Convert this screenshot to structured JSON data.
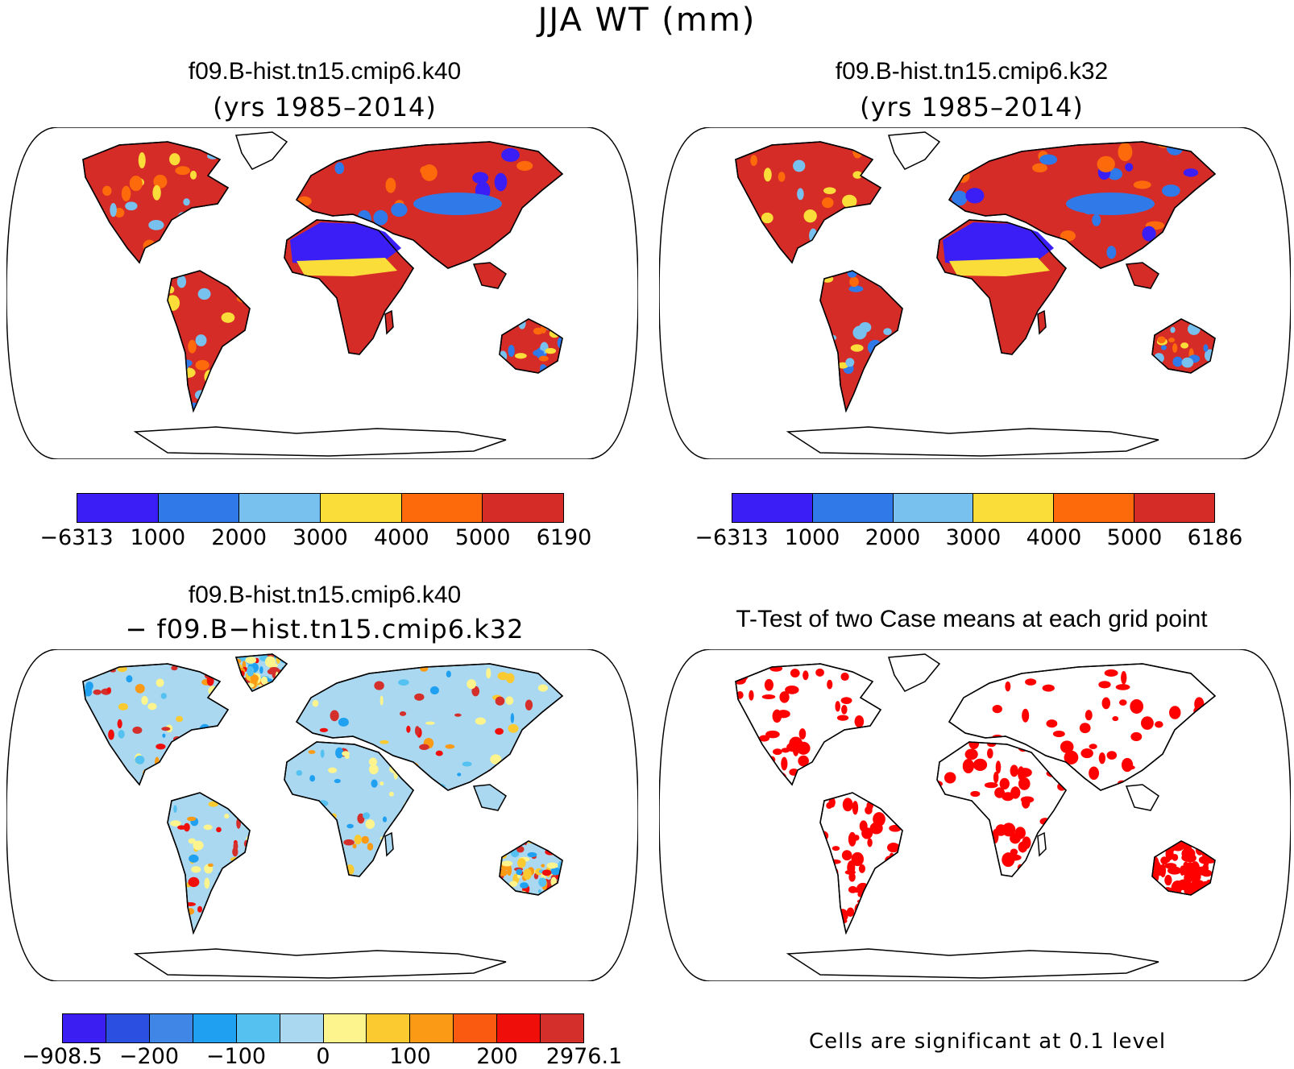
{
  "title": "JJA WT (mm)",
  "panels": [
    {
      "title": "f09.B-hist.tn15.cmip6.k40",
      "subtitle": "(yrs 1985–2014)",
      "colorbar": {
        "colors": [
          "#3a1ef5",
          "#2f7ae8",
          "#78c0ee",
          "#fbdd3a",
          "#fd6a0b",
          "#d62c27"
        ],
        "labels": [
          "−6313",
          "1000",
          "2000",
          "3000",
          "4000",
          "5000",
          "6190"
        ]
      }
    },
    {
      "title": "f09.B-hist.tn15.cmip6.k32",
      "subtitle": "(yrs 1985–2014)",
      "colorbar": {
        "colors": [
          "#3a1ef5",
          "#2f7ae8",
          "#78c0ee",
          "#fbdd3a",
          "#fd6a0b",
          "#d62c27"
        ],
        "labels": [
          "−6313",
          "1000",
          "2000",
          "3000",
          "4000",
          "5000",
          "6186"
        ]
      }
    },
    {
      "title": "f09.B-hist.tn15.cmip6.k40",
      "subtitle": "− f09.B−hist.tn15.cmip6.k32",
      "colorbar": {
        "colors": [
          "#3b1ef2",
          "#2b4fe0",
          "#3f86e6",
          "#1fa0f0",
          "#55c1f0",
          "#a9d8f0",
          "#fdf48e",
          "#fbc930",
          "#fb9a14",
          "#fa5a10",
          "#f00e0b",
          "#d42f2a"
        ],
        "labels": [
          "−908.5",
          "−200",
          "−100",
          "0",
          "100",
          "200",
          "2976.1"
        ]
      }
    },
    {
      "title": "T-Test of two Case means at each grid point",
      "note": "Cells are significant at 0.1 level",
      "significant_color": "#ff0000"
    }
  ]
}
